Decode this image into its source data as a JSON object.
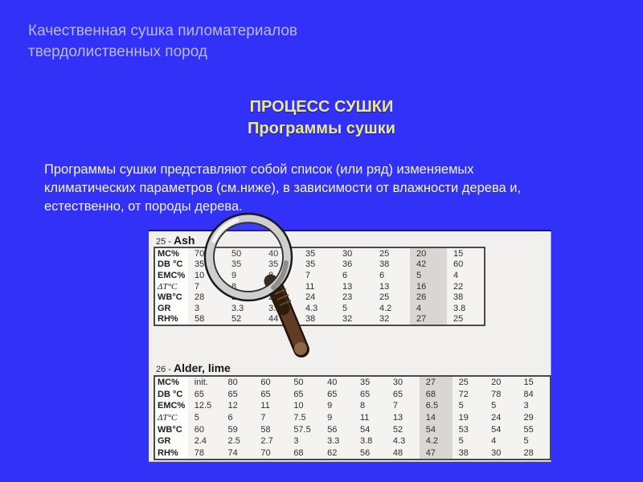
{
  "slide_title": {
    "line1": "Качественная сушка пиломатериалов",
    "line2": "твердолиственных пород"
  },
  "heading": {
    "line1": "ПРОЦЕСС СУШКИ",
    "line2": "Программы сушки"
  },
  "body": {
    "line1": "Программы сушки представляют собой список (или ряд) изменяемых",
    "line2": "климатических параметров (см.ниже), в зависимости от влажности дерева и,",
    "line3": "естественно, от породы дерева."
  },
  "figure": {
    "tables": [
      {
        "caption_number": "25 -",
        "caption_name": "Ash",
        "row_labels": [
          "MC%",
          "DB °C",
          "EMC%",
          "ΔT°C",
          "WB°C",
          "GR",
          "RH%"
        ],
        "rows": [
          [
            "70",
            "50",
            "40",
            "35",
            "30",
            "25",
            "20",
            "15"
          ],
          [
            "35",
            "35",
            "35",
            "35",
            "36",
            "38",
            "42",
            "60"
          ],
          [
            "10",
            "9",
            "8",
            "7",
            "6",
            "6",
            "5",
            "4"
          ],
          [
            "7",
            "8",
            "10",
            "11",
            "13",
            "13",
            "16",
            "22"
          ],
          [
            "28",
            "27",
            "25",
            "24",
            "23",
            "25",
            "26",
            "38"
          ],
          [
            "3",
            "3.3",
            "3.8",
            "4.3",
            "5",
            "4.2",
            "4",
            "3.8"
          ],
          [
            "58",
            "52",
            "44",
            "38",
            "32",
            "32",
            "27",
            "25"
          ]
        ],
        "highlight_col": 6
      },
      {
        "caption_number": "26 -",
        "caption_name": "Alder, lime",
        "row_labels": [
          "MC%",
          "DB °C",
          "EMC%",
          "ΔT°C",
          "WB°C",
          "GR",
          "RH%"
        ],
        "rows": [
          [
            "init.",
            "80",
            "60",
            "50",
            "40",
            "35",
            "30",
            "27",
            "25",
            "20",
            "15"
          ],
          [
            "65",
            "65",
            "65",
            "65",
            "65",
            "65",
            "65",
            "68",
            "72",
            "78",
            "84"
          ],
          [
            "12.5",
            "12",
            "11",
            "10",
            "9",
            "8",
            "7",
            "6.5",
            "5",
            "5",
            "3"
          ],
          [
            "5",
            "6",
            "7",
            "7.5",
            "9",
            "11",
            "13",
            "14",
            "19",
            "24",
            "29"
          ],
          [
            "60",
            "59",
            "58",
            "57.5",
            "56",
            "54",
            "52",
            "54",
            "53",
            "54",
            "55"
          ],
          [
            "2.4",
            "2.5",
            "2.7",
            "3",
            "3.3",
            "3.8",
            "4.3",
            "4.2",
            "5",
            "4",
            "5"
          ],
          [
            "78",
            "74",
            "70",
            "68",
            "62",
            "56",
            "48",
            "47",
            "38",
            "30",
            "28"
          ]
        ],
        "highlight_col": 7
      }
    ],
    "icons": {
      "overlay": "magnifying-glass-icon"
    }
  },
  "colors": {
    "background": "#3231f7",
    "title_text": "#b9b9f0",
    "heading_text": "#e9e98f",
    "body_text": "#f4f4d0",
    "panel_background": "#f1f0ee",
    "highlight_column": "#d8d7d4",
    "magnifier_handle": "#5f3d24"
  }
}
